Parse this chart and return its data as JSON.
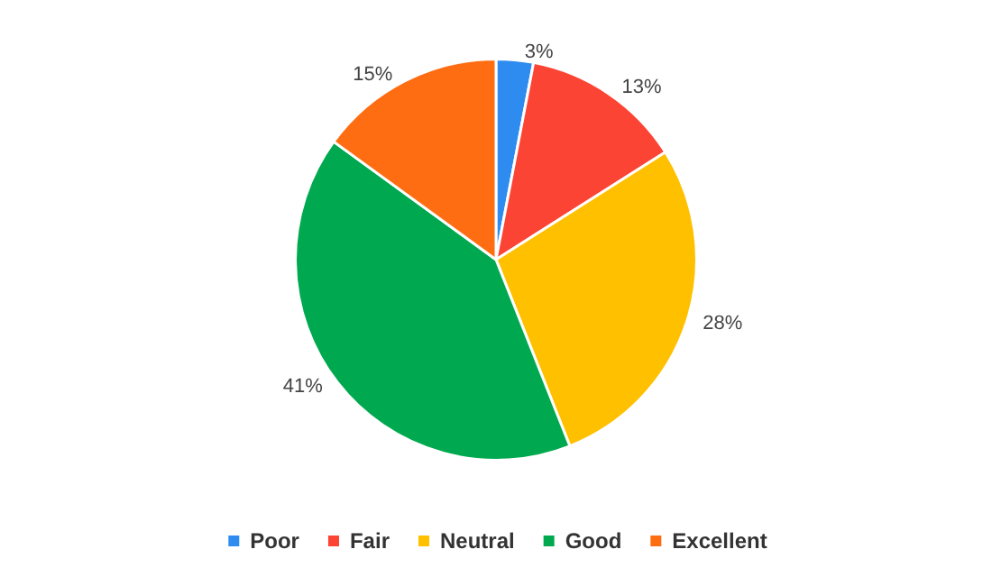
{
  "chart_data": {
    "type": "pie",
    "categories": [
      "Poor",
      "Fair",
      "Neutral",
      "Good",
      "Excellent"
    ],
    "values": [
      3,
      13,
      28,
      41,
      15
    ],
    "value_labels": [
      "3%",
      "13%",
      "28%",
      "41%",
      "15%"
    ],
    "colors": [
      "#2e8bf0",
      "#fb4434",
      "#ffc000",
      "#00a94f",
      "#ff6d12"
    ],
    "legend": "bottom"
  }
}
